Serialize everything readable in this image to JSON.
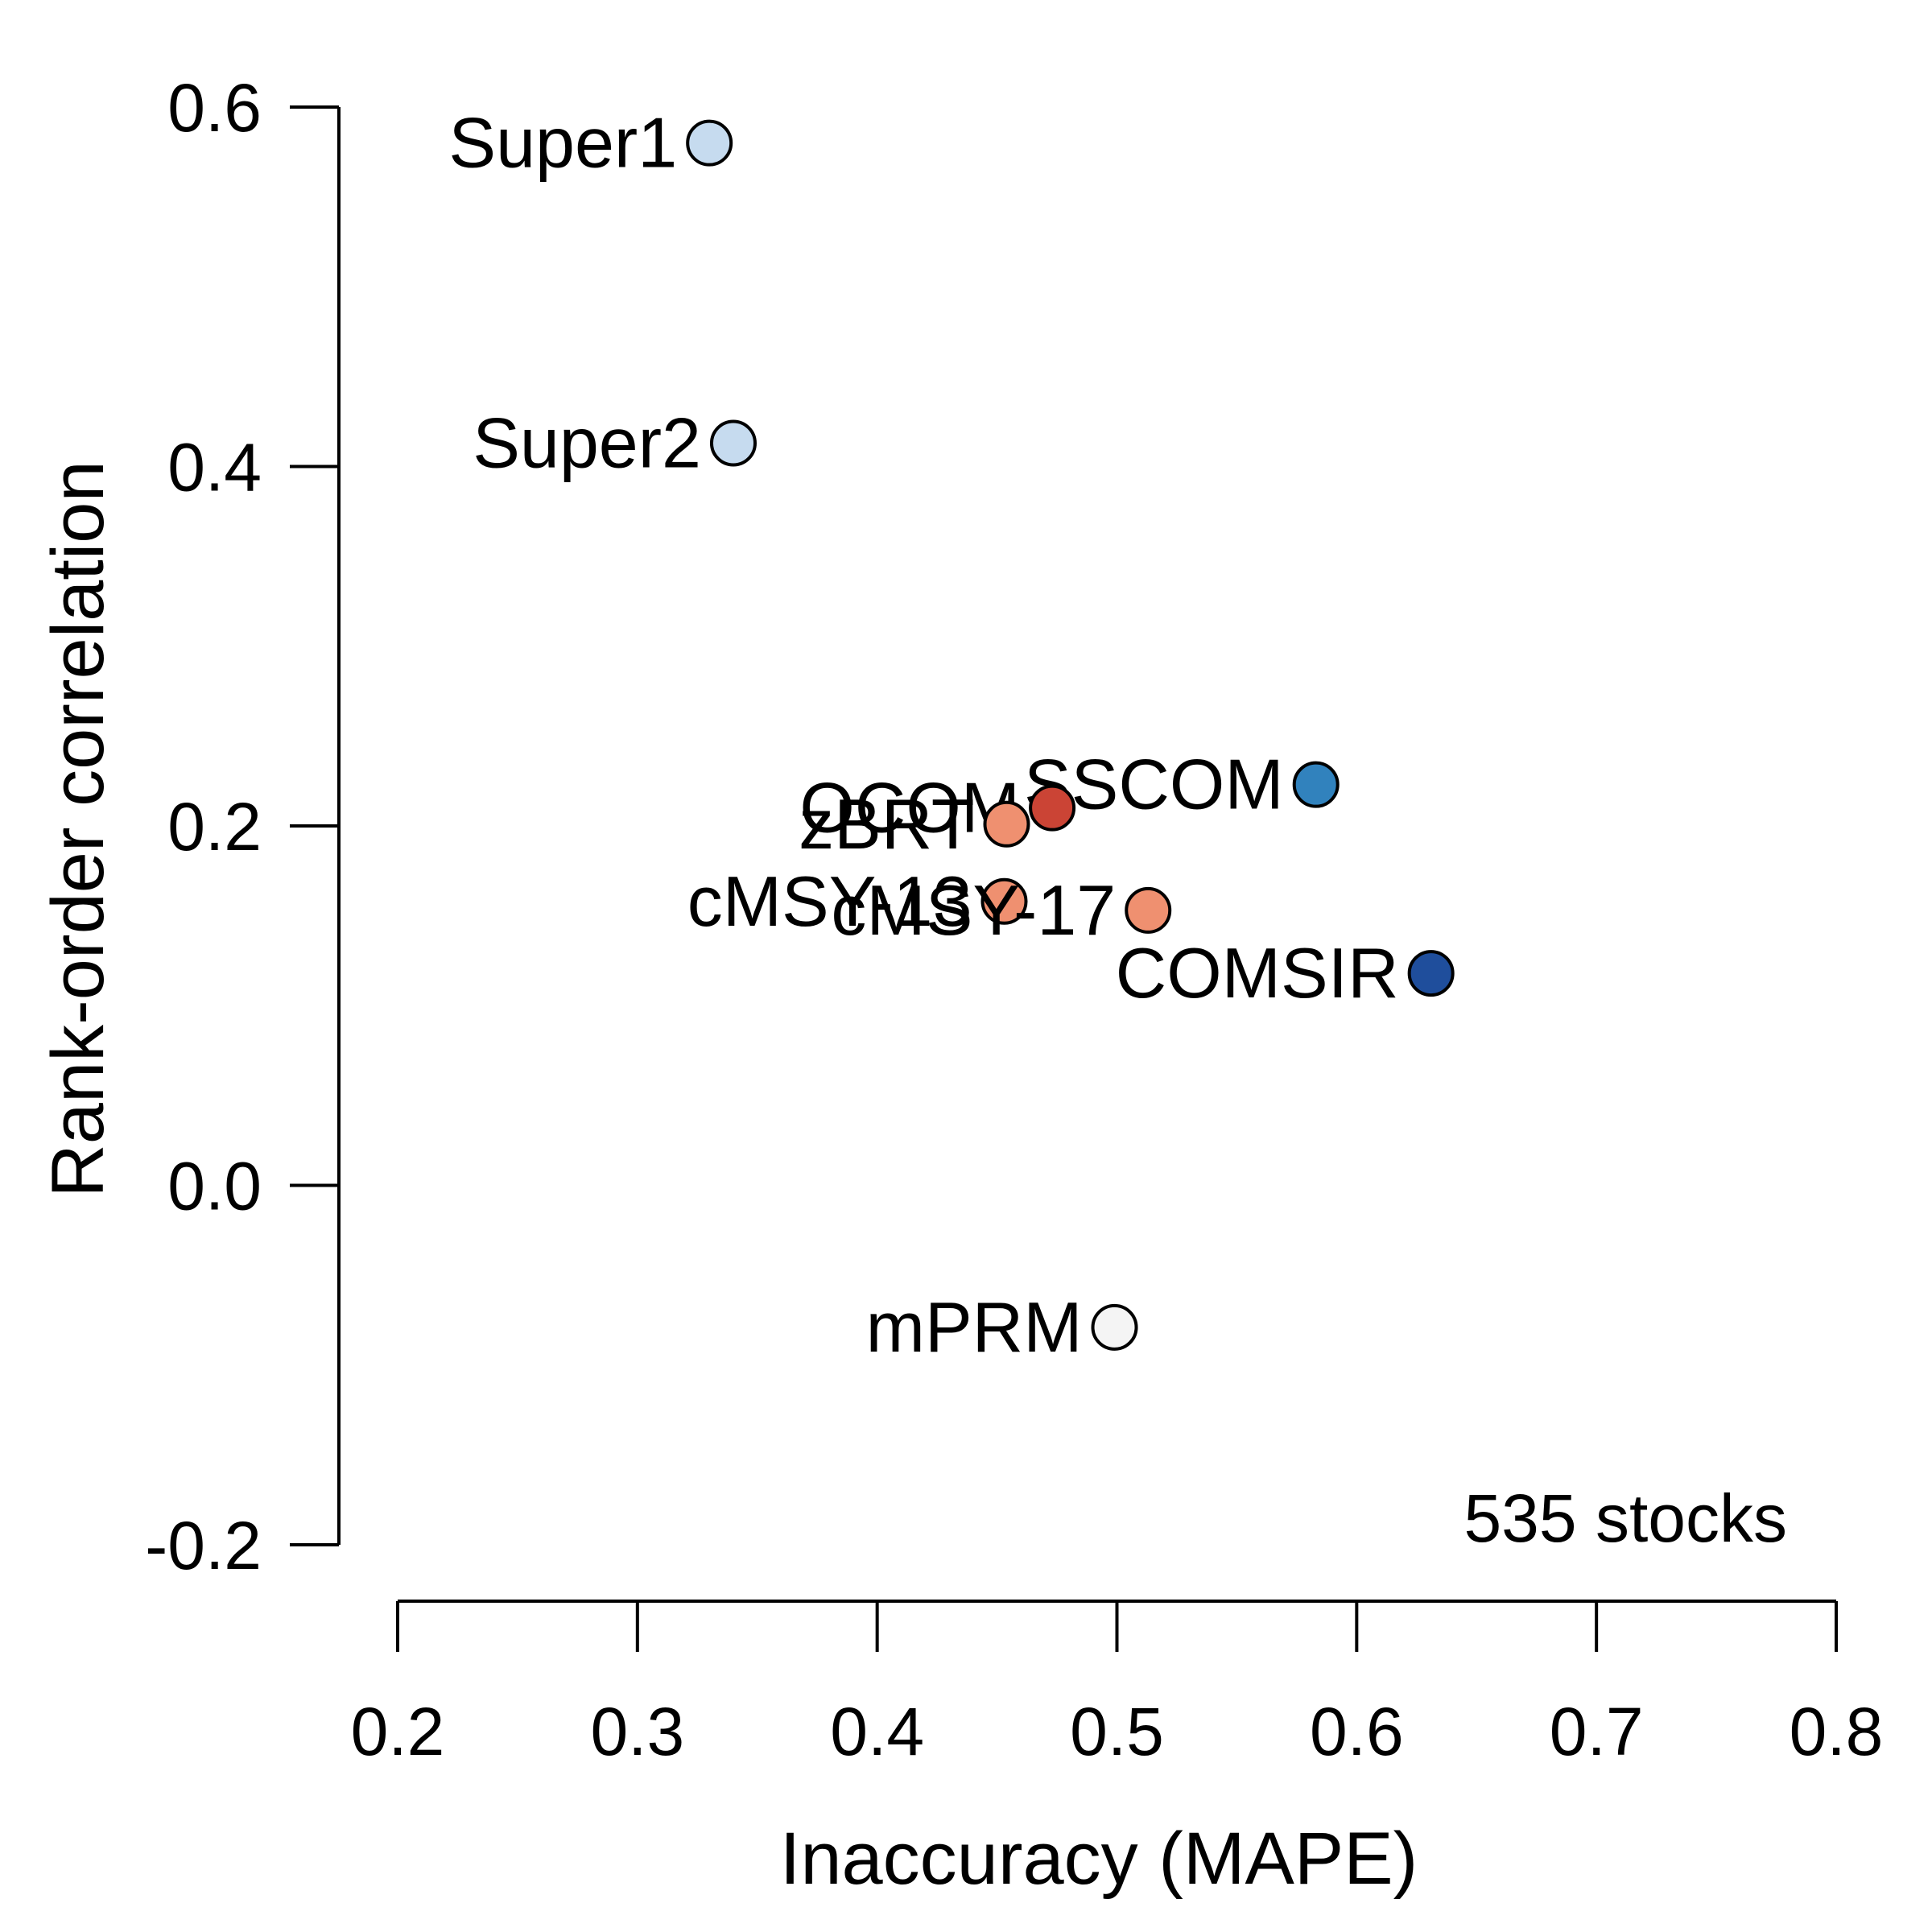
{
  "chart_data": {
    "type": "scatter",
    "xlabel": "Inaccuracy (MAPE)",
    "ylabel": "Rank-order correlation",
    "annotation": "535 stocks",
    "xlim": [
      0.2,
      0.8
    ],
    "ylim": [
      -0.2,
      0.6
    ],
    "x_ticks": [
      0.2,
      0.3,
      0.4,
      0.5,
      0.6,
      0.7,
      0.8
    ],
    "x_tick_labels": [
      "0.2",
      "0.3",
      "0.4",
      "0.5",
      "0.6",
      "0.7",
      "0.8"
    ],
    "y_ticks": [
      -0.2,
      0.0,
      0.2,
      0.4,
      0.6
    ],
    "y_tick_labels": [
      "-0.2",
      "0.0",
      "0.2",
      "0.4",
      "0.6"
    ],
    "grid": false,
    "points": [
      {
        "label": "Super1",
        "x": 0.33,
        "y": 0.58,
        "color": "#c6dbef"
      },
      {
        "label": "Super2",
        "x": 0.34,
        "y": 0.413,
        "color": "#c6dbef"
      },
      {
        "label": "SSCOM",
        "x": 0.583,
        "y": 0.223,
        "color": "#3182bd"
      },
      {
        "label": "OCOM",
        "x": 0.473,
        "y": 0.21,
        "color": "#cb4435"
      },
      {
        "label": "zBRT",
        "x": 0.454,
        "y": 0.201,
        "color": "#ef9070"
      },
      {
        "label": "cMSY-13",
        "x": 0.453,
        "y": 0.158,
        "color": "#ef9070"
      },
      {
        "label": "cMSY-17",
        "x": 0.513,
        "y": 0.153,
        "color": "#ef9070"
      },
      {
        "label": "COMSIR",
        "x": 0.631,
        "y": 0.118,
        "color": "#1f4e9c"
      },
      {
        "label": "mPRM",
        "x": 0.499,
        "y": -0.079,
        "color": "#f4f4f4"
      }
    ]
  }
}
